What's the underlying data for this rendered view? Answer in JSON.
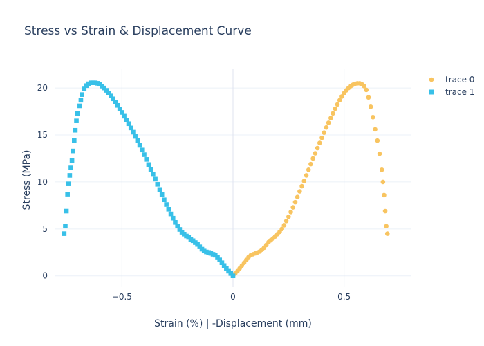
{
  "chart_data": {
    "type": "scatter",
    "title": "Stress vs Strain & Displacement Curve",
    "xlabel": "Strain (%) | -Displacement (mm)",
    "ylabel": "Stress (MPa)",
    "xlim": [
      -0.8,
      0.8
    ],
    "ylim": [
      -1.2,
      22
    ],
    "x_ticks": [
      {
        "value": -0.5,
        "label": "−0.5"
      },
      {
        "value": 0,
        "label": "0"
      },
      {
        "value": 0.5,
        "label": "0.5"
      }
    ],
    "y_ticks": [
      {
        "value": 0,
        "label": "0"
      },
      {
        "value": 5,
        "label": "5"
      },
      {
        "value": 10,
        "label": "10"
      },
      {
        "value": 15,
        "label": "15"
      },
      {
        "value": 20,
        "label": "20"
      }
    ],
    "grid": true,
    "legend_position": "top-right",
    "series": [
      {
        "name": "trace 0",
        "marker": "circle",
        "color": "#f8c460",
        "points": [
          [
            0,
            0
          ],
          [
            0.01,
            0.25
          ],
          [
            0.02,
            0.5
          ],
          [
            0.03,
            0.8
          ],
          [
            0.04,
            1.1
          ],
          [
            0.05,
            1.4
          ],
          [
            0.06,
            1.7
          ],
          [
            0.07,
            2.0
          ],
          [
            0.08,
            2.2
          ],
          [
            0.09,
            2.3
          ],
          [
            0.1,
            2.4
          ],
          [
            0.11,
            2.5
          ],
          [
            0.12,
            2.6
          ],
          [
            0.13,
            2.8
          ],
          [
            0.14,
            3.0
          ],
          [
            0.15,
            3.3
          ],
          [
            0.16,
            3.6
          ],
          [
            0.17,
            3.8
          ],
          [
            0.18,
            4.0
          ],
          [
            0.19,
            4.2
          ],
          [
            0.2,
            4.45
          ],
          [
            0.21,
            4.7
          ],
          [
            0.22,
            5.0
          ],
          [
            0.23,
            5.4
          ],
          [
            0.24,
            5.85
          ],
          [
            0.25,
            6.3
          ],
          [
            0.26,
            6.8
          ],
          [
            0.27,
            7.3
          ],
          [
            0.28,
            7.85
          ],
          [
            0.29,
            8.4
          ],
          [
            0.3,
            9.0
          ],
          [
            0.31,
            9.55
          ],
          [
            0.32,
            10.1
          ],
          [
            0.33,
            10.7
          ],
          [
            0.34,
            11.3
          ],
          [
            0.35,
            11.9
          ],
          [
            0.36,
            12.5
          ],
          [
            0.37,
            13.05
          ],
          [
            0.38,
            13.6
          ],
          [
            0.39,
            14.15
          ],
          [
            0.4,
            14.7
          ],
          [
            0.41,
            15.25
          ],
          [
            0.42,
            15.8
          ],
          [
            0.43,
            16.3
          ],
          [
            0.44,
            16.8
          ],
          [
            0.45,
            17.3
          ],
          [
            0.46,
            17.8
          ],
          [
            0.47,
            18.25
          ],
          [
            0.48,
            18.7
          ],
          [
            0.49,
            19.1
          ],
          [
            0.5,
            19.45
          ],
          [
            0.51,
            19.75
          ],
          [
            0.52,
            20.0
          ],
          [
            0.53,
            20.2
          ],
          [
            0.54,
            20.35
          ],
          [
            0.55,
            20.45
          ],
          [
            0.56,
            20.5
          ],
          [
            0.57,
            20.5
          ],
          [
            0.58,
            20.4
          ],
          [
            0.59,
            20.2
          ],
          [
            0.6,
            19.8
          ],
          [
            0.61,
            19.0
          ],
          [
            0.62,
            18.0
          ],
          [
            0.63,
            16.9
          ],
          [
            0.64,
            15.6
          ],
          [
            0.65,
            14.4
          ],
          [
            0.66,
            13.0
          ],
          [
            0.67,
            11.3
          ],
          [
            0.675,
            10.0
          ],
          [
            0.68,
            8.6
          ],
          [
            0.685,
            6.9
          ],
          [
            0.69,
            5.3
          ],
          [
            0.695,
            4.5
          ]
        ]
      },
      {
        "name": "trace 1",
        "marker": "square",
        "color": "#38c0e8",
        "points": [
          [
            0,
            0
          ],
          [
            -0.01,
            0.25
          ],
          [
            -0.02,
            0.5
          ],
          [
            -0.03,
            0.8
          ],
          [
            -0.04,
            1.1
          ],
          [
            -0.05,
            1.4
          ],
          [
            -0.06,
            1.7
          ],
          [
            -0.07,
            2.0
          ],
          [
            -0.08,
            2.2
          ],
          [
            -0.09,
            2.3
          ],
          [
            -0.1,
            2.4
          ],
          [
            -0.11,
            2.5
          ],
          [
            -0.12,
            2.55
          ],
          [
            -0.13,
            2.65
          ],
          [
            -0.14,
            2.85
          ],
          [
            -0.15,
            3.1
          ],
          [
            -0.16,
            3.35
          ],
          [
            -0.17,
            3.55
          ],
          [
            -0.18,
            3.75
          ],
          [
            -0.19,
            3.9
          ],
          [
            -0.2,
            4.1
          ],
          [
            -0.21,
            4.25
          ],
          [
            -0.22,
            4.45
          ],
          [
            -0.23,
            4.65
          ],
          [
            -0.24,
            4.95
          ],
          [
            -0.25,
            5.3
          ],
          [
            -0.26,
            5.7
          ],
          [
            -0.27,
            6.15
          ],
          [
            -0.28,
            6.6
          ],
          [
            -0.29,
            7.1
          ],
          [
            -0.3,
            7.6
          ],
          [
            -0.31,
            8.1
          ],
          [
            -0.32,
            8.65
          ],
          [
            -0.33,
            9.2
          ],
          [
            -0.34,
            9.75
          ],
          [
            -0.35,
            10.3
          ],
          [
            -0.36,
            10.8
          ],
          [
            -0.37,
            11.3
          ],
          [
            -0.38,
            11.85
          ],
          [
            -0.39,
            12.4
          ],
          [
            -0.4,
            12.9
          ],
          [
            -0.41,
            13.4
          ],
          [
            -0.42,
            13.9
          ],
          [
            -0.43,
            14.4
          ],
          [
            -0.44,
            14.85
          ],
          [
            -0.45,
            15.3
          ],
          [
            -0.46,
            15.75
          ],
          [
            -0.47,
            16.2
          ],
          [
            -0.48,
            16.6
          ],
          [
            -0.49,
            17.0
          ],
          [
            -0.5,
            17.4
          ],
          [
            -0.51,
            17.75
          ],
          [
            -0.52,
            18.15
          ],
          [
            -0.53,
            18.5
          ],
          [
            -0.54,
            18.85
          ],
          [
            -0.55,
            19.15
          ],
          [
            -0.56,
            19.45
          ],
          [
            -0.57,
            19.75
          ],
          [
            -0.58,
            20.0
          ],
          [
            -0.59,
            20.2
          ],
          [
            -0.6,
            20.4
          ],
          [
            -0.61,
            20.5
          ],
          [
            -0.62,
            20.55
          ],
          [
            -0.63,
            20.55
          ],
          [
            -0.64,
            20.55
          ],
          [
            -0.65,
            20.45
          ],
          [
            -0.66,
            20.25
          ],
          [
            -0.67,
            19.9
          ],
          [
            -0.68,
            19.3
          ],
          [
            -0.685,
            18.7
          ],
          [
            -0.69,
            18.1
          ],
          [
            -0.7,
            17.3
          ],
          [
            -0.705,
            16.5
          ],
          [
            -0.71,
            15.5
          ],
          [
            -0.715,
            14.4
          ],
          [
            -0.72,
            13.3
          ],
          [
            -0.725,
            12.3
          ],
          [
            -0.73,
            11.5
          ],
          [
            -0.735,
            10.7
          ],
          [
            -0.74,
            9.8
          ],
          [
            -0.745,
            8.7
          ],
          [
            -0.75,
            6.9
          ],
          [
            -0.755,
            5.3
          ],
          [
            -0.76,
            4.5
          ]
        ]
      }
    ]
  }
}
